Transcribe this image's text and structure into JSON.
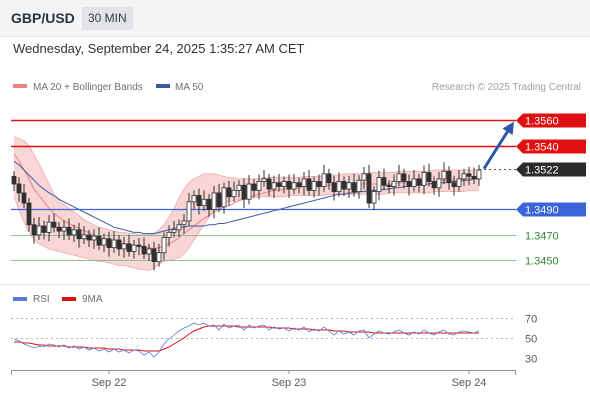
{
  "header": {
    "pair": "GBP/USD",
    "timeframe": "30 MIN",
    "datetime": "Wednesday, September 24, 2025 1:35:27 AM CET"
  },
  "colors": {
    "bollinger": "#f08080",
    "bollinger_fill": "#f6c8c8",
    "ma50": "#3d5a9e",
    "resistance": "#e01010",
    "current": "#2b2b2b",
    "support_blue": "#3a64d8",
    "support_green": "#2e8b2e",
    "rsi": "#5b78d6",
    "rsi_ma": "#e01010",
    "arrow": "#2f56a8",
    "candle_up": "#ffffff",
    "candle_down": "#303030"
  },
  "chart_data": [
    {
      "type": "candlestick",
      "legend": {
        "items": [
          {
            "label": "MA 20 + Bollinger Bands",
            "color": "#f08080"
          },
          {
            "label": "MA 50",
            "color": "#3d5a9e"
          }
        ],
        "credit": "Research © 2025 Trading Central"
      },
      "x_ticks": [
        {
          "label": "Sep 22",
          "index": 19
        },
        {
          "label": "Sep 23",
          "index": 55
        },
        {
          "label": "Sep 24",
          "index": 91
        }
      ],
      "ylim": [
        1.3433,
        1.3576
      ],
      "levels": [
        {
          "label": "1.3560",
          "value": 1.356,
          "style": "resistance"
        },
        {
          "label": "1.3540",
          "value": 1.354,
          "style": "resistance"
        },
        {
          "label": "1.3522",
          "value": 1.3522,
          "style": "current"
        },
        {
          "label": "1.3490",
          "value": 1.349,
          "style": "support_blue"
        },
        {
          "label": "1.3470",
          "value": 1.347,
          "style": "support_green"
        },
        {
          "label": "1.3450",
          "value": 1.345,
          "style": "support_green"
        }
      ],
      "arrow": {
        "from": [
          94,
          1.3522
        ],
        "to": [
          100,
          1.3559
        ]
      },
      "close": [
        1.351,
        1.3503,
        1.3495,
        1.3478,
        1.347,
        1.3477,
        1.3472,
        1.348,
        1.3476,
        1.3473,
        1.3476,
        1.347,
        1.3474,
        1.3467,
        1.347,
        1.3466,
        1.3469,
        1.3462,
        1.3467,
        1.346,
        1.3466,
        1.3459,
        1.3463,
        1.3457,
        1.3462,
        1.3461,
        1.3455,
        1.3459,
        1.3449,
        1.3456,
        1.3468,
        1.3472,
        1.3474,
        1.3478,
        1.3481,
        1.3496,
        1.3501,
        1.3493,
        1.3498,
        1.349,
        1.3503,
        1.3492,
        1.3507,
        1.35,
        1.3505,
        1.3509,
        1.3498,
        1.351,
        1.3505,
        1.3512,
        1.3514,
        1.3506,
        1.3511,
        1.3508,
        1.3512,
        1.3506,
        1.3511,
        1.3508,
        1.3514,
        1.3505,
        1.3512,
        1.3508,
        1.3518,
        1.3511,
        1.3504,
        1.3512,
        1.3506,
        1.3511,
        1.3504,
        1.3513,
        1.3518,
        1.3495,
        1.3504,
        1.3515,
        1.3509,
        1.3508,
        1.3512,
        1.3518,
        1.3512,
        1.3508,
        1.3514,
        1.3509,
        1.3519,
        1.3512,
        1.3507,
        1.3514,
        1.352,
        1.3511,
        1.3508,
        1.3514,
        1.3518,
        1.3516,
        1.3514,
        1.3521
      ],
      "ma20": [
        1.3534,
        1.3528,
        1.3521,
        1.3514,
        1.3506,
        1.3501,
        1.3496,
        1.3491,
        1.3487,
        1.3484,
        1.3481,
        1.3479,
        1.3477,
        1.3475,
        1.3473,
        1.3472,
        1.347,
        1.3468,
        1.3467,
        1.3465,
        1.3465,
        1.3464,
        1.3463,
        1.3462,
        1.3461,
        1.3461,
        1.346,
        1.346,
        1.3459,
        1.346,
        1.3461,
        1.3463,
        1.3465,
        1.3468,
        1.3471,
        1.3474,
        1.3477,
        1.348,
        1.3483,
        1.3485,
        1.3488,
        1.349,
        1.3492,
        1.3493,
        1.3495,
        1.3497,
        1.3498,
        1.3499,
        1.3501,
        1.3502,
        1.3503,
        1.3504,
        1.3505,
        1.3505,
        1.3506,
        1.3506,
        1.3507,
        1.3507,
        1.3508,
        1.3508,
        1.3508,
        1.3508,
        1.3509,
        1.3509,
        1.3509,
        1.3509,
        1.3509,
        1.3509,
        1.3509,
        1.351,
        1.351,
        1.351,
        1.351,
        1.351,
        1.351,
        1.351,
        1.351,
        1.3511,
        1.3511,
        1.3511,
        1.3511,
        1.3511,
        1.3512,
        1.3512,
        1.3512,
        1.3512,
        1.3513,
        1.3513,
        1.3513,
        1.3513,
        1.3514,
        1.3514,
        1.3514,
        1.3514
      ],
      "bb_upper": [
        1.3547,
        1.3546,
        1.3544,
        1.354,
        1.3533,
        1.3526,
        1.3518,
        1.351,
        1.3502,
        1.3497,
        1.3494,
        1.3491,
        1.3488,
        1.3485,
        1.3482,
        1.348,
        1.3478,
        1.3476,
        1.3475,
        1.3474,
        1.3473,
        1.3472,
        1.3472,
        1.3471,
        1.3471,
        1.347,
        1.347,
        1.347,
        1.3471,
        1.3474,
        1.3478,
        1.3484,
        1.3491,
        1.3499,
        1.3506,
        1.3511,
        1.3514,
        1.3516,
        1.3518,
        1.3518,
        1.3518,
        1.3517,
        1.3516,
        1.3515,
        1.3515,
        1.3514,
        1.3514,
        1.3514,
        1.3514,
        1.3514,
        1.3515,
        1.3515,
        1.3515,
        1.3515,
        1.3515,
        1.3515,
        1.3515,
        1.3515,
        1.3516,
        1.3516,
        1.3516,
        1.3516,
        1.3517,
        1.3517,
        1.3517,
        1.3517,
        1.3518,
        1.3518,
        1.3518,
        1.3518,
        1.3518,
        1.3519,
        1.3519,
        1.3519,
        1.3519,
        1.3519,
        1.3519,
        1.352,
        1.352,
        1.352,
        1.352,
        1.352,
        1.352,
        1.352,
        1.3521,
        1.3521,
        1.3521,
        1.3521,
        1.3521,
        1.3521,
        1.3521,
        1.3521,
        1.3521,
        1.3521
      ],
      "bb_lower": [
        1.35,
        1.349,
        1.348,
        1.3472,
        1.3466,
        1.3463,
        1.3461,
        1.3459,
        1.3458,
        1.3457,
        1.3456,
        1.3455,
        1.3454,
        1.3453,
        1.3452,
        1.3451,
        1.345,
        1.3449,
        1.3449,
        1.3448,
        1.3447,
        1.3446,
        1.3446,
        1.3445,
        1.3444,
        1.3443,
        1.3443,
        1.3442,
        1.3444,
        1.3447,
        1.3449,
        1.345,
        1.3451,
        1.3452,
        1.3455,
        1.346,
        1.3466,
        1.3472,
        1.3478,
        1.3484,
        1.349,
        1.3493,
        1.3495,
        1.3496,
        1.3497,
        1.3498,
        1.3498,
        1.3499,
        1.3499,
        1.35,
        1.35,
        1.35,
        1.35,
        1.35,
        1.35,
        1.3501,
        1.3501,
        1.3501,
        1.3501,
        1.3501,
        1.3501,
        1.3501,
        1.3501,
        1.3502,
        1.3502,
        1.3502,
        1.3502,
        1.3502,
        1.3502,
        1.3502,
        1.3502,
        1.3502,
        1.3502,
        1.3502,
        1.3502,
        1.3503,
        1.3503,
        1.3503,
        1.3503,
        1.3503,
        1.3503,
        1.3503,
        1.3503,
        1.3503,
        1.3504,
        1.3504,
        1.3504,
        1.3504,
        1.3504,
        1.3504,
        1.3504,
        1.3505,
        1.3505,
        1.3505
      ],
      "ma50": [
        1.3528,
        1.3525,
        1.3521,
        1.3517,
        1.3513,
        1.3509,
        1.3506,
        1.3503,
        1.3501,
        1.3498,
        1.3496,
        1.3494,
        1.3492,
        1.349,
        1.3488,
        1.3486,
        1.3484,
        1.3482,
        1.348,
        1.3478,
        1.3476,
        1.3475,
        1.3474,
        1.3473,
        1.3472,
        1.3472,
        1.3471,
        1.3471,
        1.3471,
        1.3472,
        1.3473,
        1.3474,
        1.3475,
        1.3476,
        1.3476,
        1.3477,
        1.3477,
        1.3477,
        1.3477,
        1.3478,
        1.3478,
        1.3479,
        1.3479,
        1.348,
        1.3481,
        1.3482,
        1.3483,
        1.3484,
        1.3485,
        1.3486,
        1.3487,
        1.3488,
        1.3489,
        1.349,
        1.3491,
        1.3492,
        1.3493,
        1.3494,
        1.3495,
        1.3496,
        1.3497,
        1.3498,
        1.3499,
        1.35,
        1.3501,
        1.3502,
        1.3502,
        1.3503,
        1.3503,
        1.3504,
        1.3504,
        1.3505,
        1.3505,
        1.3505,
        1.3506,
        1.3506,
        1.3507,
        1.3507,
        1.3508,
        1.3508,
        1.3509,
        1.3509,
        1.351,
        1.351,
        1.3511,
        1.3511,
        1.3511,
        1.3512,
        1.3512,
        1.3512,
        1.3513,
        1.3513,
        1.3514,
        1.3514
      ]
    },
    {
      "type": "line",
      "legend": {
        "items": [
          {
            "label": "RSI",
            "color": "#5b78d6"
          },
          {
            "label": "9MA",
            "color": "#e01010"
          }
        ]
      },
      "ylim": [
        20,
        80
      ],
      "y_ticks": [
        {
          "label": "70",
          "value": 70
        },
        {
          "label": "50",
          "value": 50
        },
        {
          "label": "30",
          "value": 30
        }
      ],
      "series": [
        {
          "name": "RSI",
          "values": [
            49,
            47,
            44,
            42,
            40,
            42,
            41,
            44,
            43,
            41,
            43,
            40,
            42,
            39,
            41,
            38,
            40,
            37,
            39,
            36,
            39,
            36,
            38,
            35,
            38,
            37,
            33,
            36,
            31,
            36,
            44,
            49,
            53,
            57,
            60,
            62,
            65,
            63,
            65,
            62,
            63,
            58,
            64,
            60,
            62,
            63,
            58,
            63,
            60,
            62,
            63,
            58,
            61,
            59,
            60,
            57,
            60,
            58,
            61,
            56,
            59,
            57,
            61,
            57,
            53,
            57,
            54,
            56,
            53,
            57,
            58,
            50,
            54,
            57,
            55,
            54,
            56,
            58,
            55,
            53,
            56,
            54,
            58,
            55,
            53,
            56,
            58,
            54,
            53,
            56,
            57,
            56,
            55,
            57
          ]
        },
        {
          "name": "9MA",
          "values": [
            46,
            46,
            45,
            45,
            44,
            43,
            43,
            42,
            42,
            42,
            42,
            41,
            41,
            41,
            41,
            40,
            40,
            40,
            40,
            39,
            39,
            39,
            38,
            38,
            38,
            38,
            37,
            37,
            37,
            37,
            39,
            41,
            44,
            47,
            50,
            54,
            57,
            59,
            61,
            62,
            62,
            62,
            62,
            62,
            62,
            61,
            61,
            61,
            61,
            61,
            61,
            61,
            60,
            60,
            60,
            60,
            59,
            59,
            59,
            59,
            58,
            58,
            58,
            58,
            57,
            57,
            57,
            56,
            56,
            56,
            56,
            56,
            55,
            55,
            55,
            55,
            55,
            55,
            55,
            55,
            55,
            55,
            55,
            55,
            55,
            55,
            55,
            55,
            55,
            55,
            55,
            55,
            55,
            55
          ]
        }
      ]
    }
  ]
}
